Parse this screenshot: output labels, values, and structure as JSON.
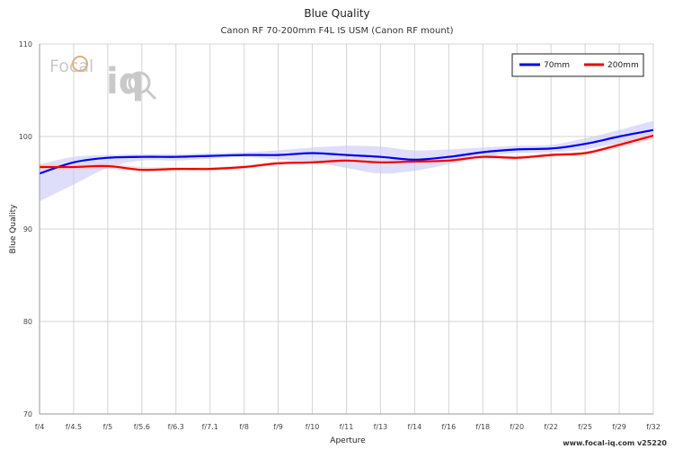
{
  "chart_data": {
    "type": "line",
    "title": "Blue Quality",
    "subtitle": "Canon RF 70-200mm F4L IS USM (Canon RF mount)",
    "xlabel": "Aperture",
    "ylabel": "Blue Quality",
    "ylim": [
      70,
      110
    ],
    "yticks": [
      70,
      80,
      90,
      100,
      110
    ],
    "categories": [
      "f/4",
      "f/4.5",
      "f/5",
      "f/5.6",
      "f/6.3",
      "f/7.1",
      "f/8",
      "f/9",
      "f/10",
      "f/11",
      "f/13",
      "f/14",
      "f/16",
      "f/18",
      "f/20",
      "f/22",
      "f/25",
      "f/29",
      "f/32"
    ],
    "grid": true,
    "legend_position": "top-right",
    "series": [
      {
        "name": "70mm",
        "color": "#0000ee",
        "band_color": "#c8c8f8",
        "values": [
          96.0,
          97.2,
          97.7,
          97.8,
          97.8,
          97.9,
          98.0,
          98.0,
          98.2,
          98.0,
          97.8,
          97.5,
          97.8,
          98.3,
          98.6,
          98.7,
          99.2,
          100.0,
          100.7
        ],
        "lower": [
          93.0,
          94.8,
          96.6,
          97.4,
          97.4,
          97.6,
          97.8,
          97.5,
          97.2,
          96.6,
          96.0,
          96.3,
          97.0,
          97.8,
          98.2,
          98.3,
          98.6,
          99.3,
          99.7
        ],
        "upper": [
          97.0,
          97.8,
          98.0,
          98.1,
          98.1,
          98.2,
          98.3,
          98.5,
          98.8,
          99.0,
          98.9,
          98.5,
          98.6,
          98.8,
          99.0,
          99.1,
          99.8,
          100.7,
          101.7
        ]
      },
      {
        "name": "200mm",
        "color": "#ee0000",
        "band_color": "#f8c8c8",
        "values": [
          96.7,
          96.7,
          96.8,
          96.4,
          96.5,
          96.5,
          96.7,
          97.1,
          97.2,
          97.4,
          97.2,
          97.3,
          97.4,
          97.8,
          97.7,
          98.0,
          98.2,
          99.1,
          100.1
        ],
        "lower": [
          96.4,
          96.4,
          96.5,
          96.2,
          96.3,
          96.3,
          96.5,
          96.9,
          97.0,
          97.2,
          97.0,
          97.1,
          97.2,
          97.6,
          97.5,
          97.8,
          98.0,
          98.8,
          99.7
        ],
        "upper": [
          97.0,
          97.0,
          97.1,
          96.7,
          96.7,
          96.7,
          96.9,
          97.3,
          97.4,
          97.6,
          97.4,
          97.5,
          97.6,
          98.0,
          97.9,
          98.2,
          98.4,
          99.4,
          100.5
        ]
      }
    ]
  },
  "logo": {
    "brand_left": "Focal",
    "brand_right": "iq"
  },
  "footer": "www.focal-iq.com v25220"
}
